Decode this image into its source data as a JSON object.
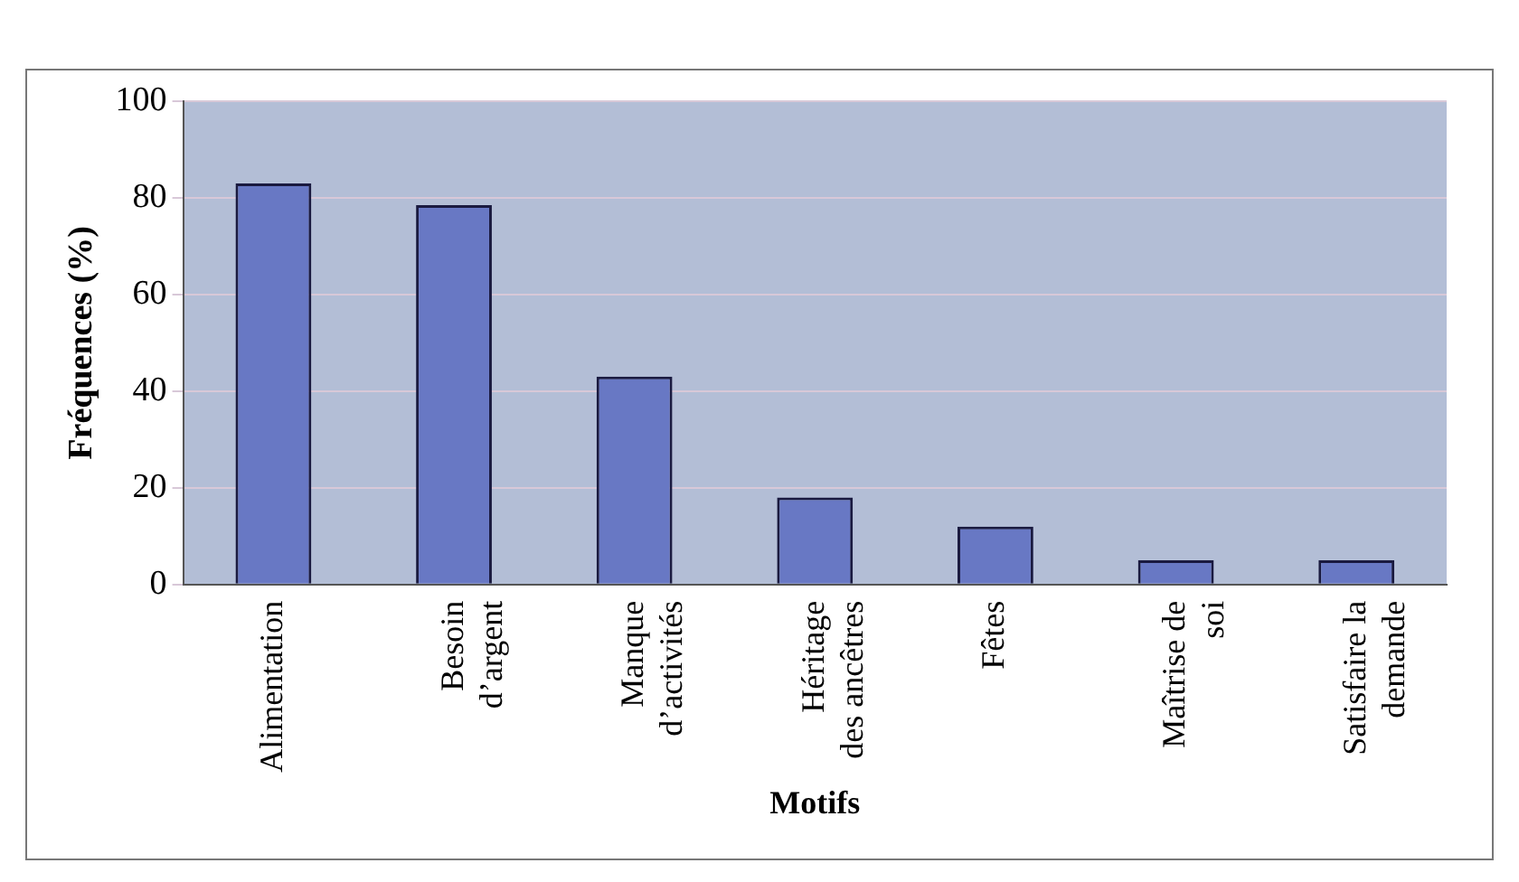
{
  "chart_data": {
    "type": "bar",
    "categories": [
      "Alimentation",
      "Besoin\nd’argent",
      "Manque\nd’activités",
      "Héritage\ndes ancêtres",
      "Fêtes",
      "Maîtrise de\nsoi",
      "Satisfaire la\ndemande"
    ],
    "values": [
      83,
      78.5,
      43,
      18,
      12,
      5,
      5
    ],
    "color": "#6878c4",
    "ylim": [
      0,
      100
    ],
    "yticks": [
      0,
      20,
      40,
      60,
      80,
      100
    ],
    "grid": "y",
    "xlabel": "Motifs",
    "ylabel": "Fréquences (%)",
    "legend": false
  }
}
